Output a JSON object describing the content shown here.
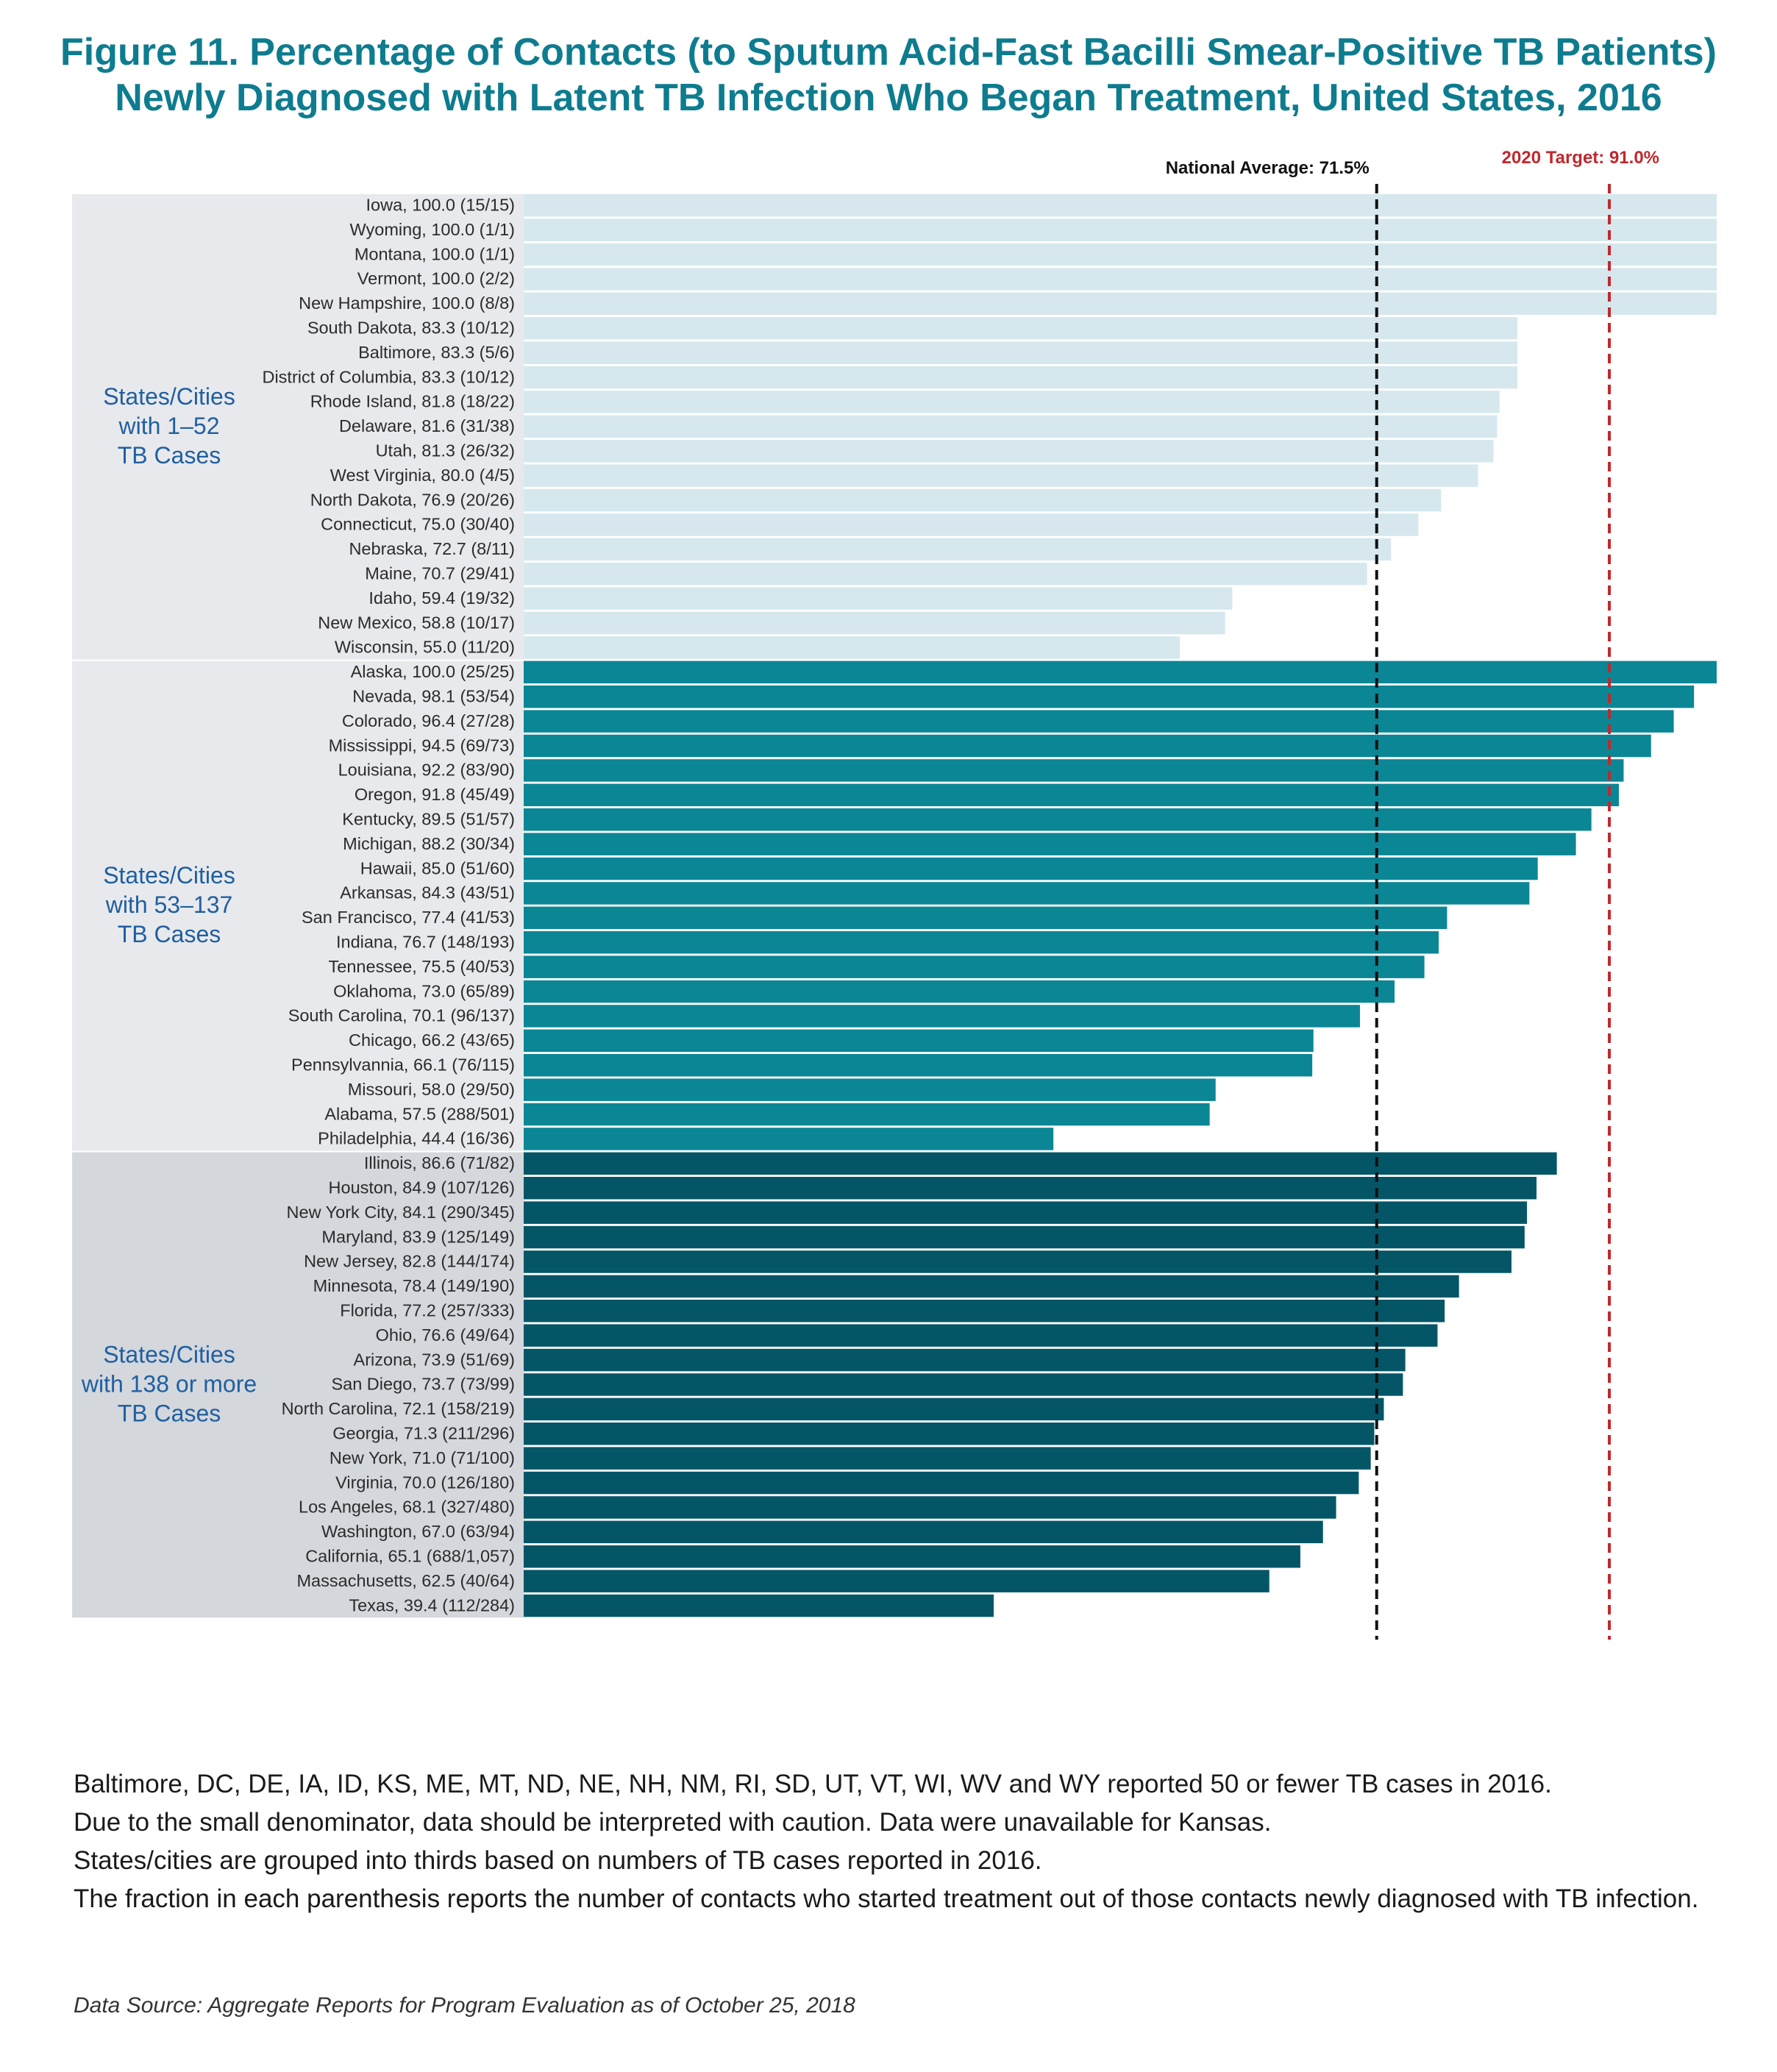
{
  "title_line1": "Figure 11. Percentage of Contacts (to Sputum Acid-Fast Bacilli Smear-Positive TB Patients)",
  "title_line2": "Newly Diagnosed with Latent TB Infection Who Began Treatment, United States, 2016",
  "notes": [
    "Baltimore, DC, DE, IA, ID, KS, ME, MT, ND, NE, NH, NM, RI, SD, UT, VT, WI, WV and WY reported 50 or fewer TB cases in 2016.",
    "Due to the small denominator, data should be interpreted with caution.  Data were unavailable for Kansas.",
    "States/cities are grouped into thirds based on numbers of TB cases reported in 2016.",
    "The fraction in each parenthesis reports the number of contacts who started treatment out of those contacts newly diagnosed with TB infection."
  ],
  "source": "Data Source: Aggregate Reports for Program Evaluation as of October 25, 2018",
  "chart_data": {
    "type": "bar",
    "orientation": "horizontal",
    "xlim": [
      0,
      100
    ],
    "grid": false,
    "reference_lines": [
      {
        "label": "National Average: 71.5%",
        "value": 71.5,
        "color": "#111111"
      },
      {
        "label": "2020 Target: 91.0%",
        "value": 91.0,
        "color": "#c0282d"
      }
    ],
    "groups": [
      {
        "name_lines": [
          "States/Cities",
          "with 1–52",
          "TB Cases"
        ],
        "bar_color": "#d6e8ee",
        "panel_color": "#e8e9ec",
        "bars": [
          {
            "label": "Iowa, 100.0 (15/15)",
            "value": 100.0
          },
          {
            "label": "Wyoming, 100.0 (1/1)",
            "value": 100.0
          },
          {
            "label": "Montana, 100.0 (1/1)",
            "value": 100.0
          },
          {
            "label": "Vermont, 100.0 (2/2)",
            "value": 100.0
          },
          {
            "label": "New Hampshire, 100.0 (8/8)",
            "value": 100.0
          },
          {
            "label": "South Dakota, 83.3 (10/12)",
            "value": 83.3
          },
          {
            "label": "Baltimore, 83.3 (5/6)",
            "value": 83.3
          },
          {
            "label": "District of Columbia, 83.3 (10/12)",
            "value": 83.3
          },
          {
            "label": "Rhode Island, 81.8 (18/22)",
            "value": 81.8
          },
          {
            "label": "Delaware, 81.6 (31/38)",
            "value": 81.6
          },
          {
            "label": "Utah, 81.3 (26/32)",
            "value": 81.3
          },
          {
            "label": "West Virginia, 80.0 (4/5)",
            "value": 80.0
          },
          {
            "label": "North Dakota, 76.9 (20/26)",
            "value": 76.9
          },
          {
            "label": "Connecticut, 75.0 (30/40)",
            "value": 75.0
          },
          {
            "label": "Nebraska, 72.7 (8/11)",
            "value": 72.7
          },
          {
            "label": "Maine, 70.7 (29/41)",
            "value": 70.7
          },
          {
            "label": "Idaho, 59.4 (19/32)",
            "value": 59.4
          },
          {
            "label": "New Mexico, 58.8 (10/17)",
            "value": 58.8
          },
          {
            "label": "Wisconsin, 55.0 (11/20)",
            "value": 55.0
          }
        ]
      },
      {
        "name_lines": [
          "States/Cities",
          "with 53–137",
          "TB Cases"
        ],
        "bar_color": "#0b8695",
        "panel_color": "#e8e9ec",
        "bars": [
          {
            "label": "Alaska, 100.0 (25/25)",
            "value": 100.0
          },
          {
            "label": "Nevada, 98.1 (53/54)",
            "value": 98.1
          },
          {
            "label": "Colorado, 96.4 (27/28)",
            "value": 96.4
          },
          {
            "label": "Mississippi, 94.5 (69/73)",
            "value": 94.5
          },
          {
            "label": "Louisiana, 92.2 (83/90)",
            "value": 92.2
          },
          {
            "label": "Oregon, 91.8 (45/49)",
            "value": 91.8
          },
          {
            "label": "Kentucky, 89.5 (51/57)",
            "value": 89.5
          },
          {
            "label": "Michigan, 88.2 (30/34)",
            "value": 88.2
          },
          {
            "label": "Hawaii, 85.0 (51/60)",
            "value": 85.0
          },
          {
            "label": "Arkansas, 84.3 (43/51)",
            "value": 84.3
          },
          {
            "label": "San Francisco, 77.4 (41/53)",
            "value": 77.4
          },
          {
            "label": "Indiana, 76.7 (148/193)",
            "value": 76.7
          },
          {
            "label": "Tennessee, 75.5 (40/53)",
            "value": 75.5
          },
          {
            "label": "Oklahoma, 73.0 (65/89)",
            "value": 73.0
          },
          {
            "label": "South Carolina, 70.1 (96/137)",
            "value": 70.1
          },
          {
            "label": "Chicago, 66.2 (43/65)",
            "value": 66.2
          },
          {
            "label": "Pennsylvannia, 66.1 (76/115)",
            "value": 66.1
          },
          {
            "label": "Missouri, 58.0 (29/50)",
            "value": 58.0
          },
          {
            "label": "Alabama, 57.5 (288/501)",
            "value": 57.5
          },
          {
            "label": "Philadelphia, 44.4 (16/36)",
            "value": 44.4
          }
        ]
      },
      {
        "name_lines": [
          "States/Cities",
          "with 138 or more",
          "TB Cases"
        ],
        "bar_color": "#045667",
        "panel_color": "#d4d7dc",
        "bars": [
          {
            "label": "Illinois, 86.6 (71/82)",
            "value": 86.6
          },
          {
            "label": "Houston, 84.9 (107/126)",
            "value": 84.9
          },
          {
            "label": "New York City, 84.1 (290/345)",
            "value": 84.1
          },
          {
            "label": "Maryland, 83.9 (125/149)",
            "value": 83.9
          },
          {
            "label": "New Jersey, 82.8 (144/174)",
            "value": 82.8
          },
          {
            "label": "Minnesota, 78.4 (149/190)",
            "value": 78.4
          },
          {
            "label": "Florida, 77.2 (257/333)",
            "value": 77.2
          },
          {
            "label": "Ohio, 76.6 (49/64)",
            "value": 76.6
          },
          {
            "label": "Arizona, 73.9 (51/69)",
            "value": 73.9
          },
          {
            "label": "San Diego, 73.7 (73/99)",
            "value": 73.7
          },
          {
            "label": "North Carolina, 72.1 (158/219)",
            "value": 72.1
          },
          {
            "label": "Georgia, 71.3 (211/296)",
            "value": 71.3
          },
          {
            "label": "New York, 71.0 (71/100)",
            "value": 71.0
          },
          {
            "label": "Virginia, 70.0 (126/180)",
            "value": 70.0
          },
          {
            "label": "Los Angeles, 68.1 (327/480)",
            "value": 68.1
          },
          {
            "label": "Washington, 67.0 (63/94)",
            "value": 67.0
          },
          {
            "label": "California, 65.1 (688/1,057)",
            "value": 65.1
          },
          {
            "label": "Massachusetts, 62.5 (40/64)",
            "value": 62.5
          },
          {
            "label": "Texas, 39.4 (112/284)",
            "value": 39.4
          }
        ]
      }
    ]
  }
}
